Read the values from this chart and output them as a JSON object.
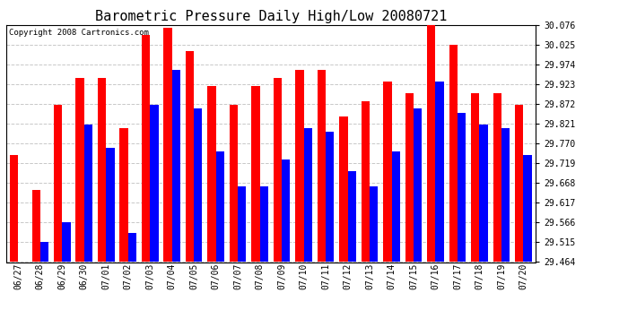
{
  "title": "Barometric Pressure Daily High/Low 20080721",
  "copyright": "Copyright 2008 Cartronics.com",
  "dates": [
    "06/27",
    "06/28",
    "06/29",
    "06/30",
    "07/01",
    "07/02",
    "07/03",
    "07/04",
    "07/05",
    "07/06",
    "07/07",
    "07/08",
    "07/09",
    "07/10",
    "07/11",
    "07/12",
    "07/13",
    "07/14",
    "07/15",
    "07/16",
    "07/17",
    "07/18",
    "07/19",
    "07/20"
  ],
  "highs": [
    29.74,
    29.65,
    29.87,
    29.94,
    29.94,
    29.81,
    30.05,
    30.07,
    30.01,
    29.92,
    29.87,
    29.92,
    29.94,
    29.96,
    29.96,
    29.84,
    29.88,
    29.93,
    29.9,
    30.076,
    30.025,
    29.9,
    29.9,
    29.87
  ],
  "lows": [
    29.464,
    29.515,
    29.566,
    29.82,
    29.76,
    29.54,
    29.87,
    29.96,
    29.86,
    29.75,
    29.66,
    29.66,
    29.73,
    29.81,
    29.8,
    29.7,
    29.66,
    29.75,
    29.86,
    29.93,
    29.85,
    29.82,
    29.81,
    29.74
  ],
  "high_color": "#ff0000",
  "low_color": "#0000ff",
  "bg_color": "#ffffff",
  "grid_color": "#c8c8c8",
  "ymin": 29.464,
  "ymax": 30.076,
  "yticks": [
    29.464,
    29.515,
    29.566,
    29.617,
    29.668,
    29.719,
    29.77,
    29.821,
    29.872,
    29.923,
    29.974,
    30.025,
    30.076
  ],
  "title_fontsize": 11,
  "copyright_fontsize": 6.5,
  "figwidth": 6.9,
  "figheight": 3.75,
  "dpi": 100
}
